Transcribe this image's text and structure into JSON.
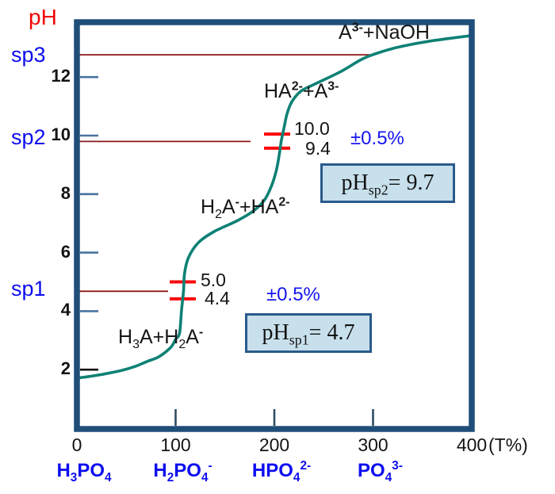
{
  "colors": {
    "frame": "#1f4e79",
    "curve": "#0e8175",
    "sp_line": "#8c1717",
    "tolerance_tick": "#fa0a0a",
    "y_tick": "#49739e",
    "y_tick_2": "#111111",
    "x_tick": "#2e4d63",
    "blue_text": "#0d0df0",
    "red_text": "#f20505",
    "box_fill": "#c8e0ec",
    "box_border": "#2a5a8c"
  },
  "y_axis": {
    "label": "pH",
    "tick_labels": [
      "2",
      "4",
      "6",
      "8",
      "10",
      "12"
    ],
    "sp_markers": [
      {
        "label": "sp1"
      },
      {
        "label": "sp2"
      },
      {
        "label": "sp3"
      }
    ]
  },
  "x_axis": {
    "tick_labels": [
      "0",
      "100",
      "200",
      "300",
      "400"
    ],
    "unit": "(T%)",
    "species_labels": [
      "H_{3}PO_{4}",
      "H_{2}PO_{4}^{-}",
      "HPO_{4}^{2-}",
      "PO_{4}^{3-}"
    ]
  },
  "annotations": {
    "regions": [
      {
        "label": "H_{3}A+H_{2}A^{-}"
      },
      {
        "label": "H_{2}A^{-}+HA^{2-}"
      },
      {
        "label": "HA^{2-}+A^{3-}"
      },
      {
        "label": "A^{3-}+NaOH"
      }
    ],
    "tolerance": [
      {
        "sp": "sp2",
        "upper": "10.0",
        "lower": "9.4",
        "pm": "±0.5%"
      },
      {
        "sp": "sp1",
        "upper": "5.0",
        "lower": "4.4",
        "pm": "±0.5%"
      }
    ]
  },
  "result_boxes": [
    {
      "text": "pH_{sp2}= 9.7"
    },
    {
      "text": "pH_{sp1}= 4.7"
    }
  ],
  "chart_data": {
    "type": "line",
    "title": "",
    "xlabel": "(T%)",
    "ylabel": "pH",
    "xlim": [
      0,
      400
    ],
    "ylim": [
      0,
      14
    ],
    "x_ticks": [
      0,
      100,
      200,
      300,
      400
    ],
    "y_ticks": [
      2,
      4,
      6,
      8,
      10,
      12
    ],
    "grid": false,
    "series": [
      {
        "name": "titration curve (pH vs T%)",
        "points": [
          [
            0,
            1.71
          ],
          [
            13,
            1.77
          ],
          [
            26,
            1.84
          ],
          [
            45,
            1.97
          ],
          [
            59,
            2.11
          ],
          [
            71,
            2.28
          ],
          [
            83,
            2.44
          ],
          [
            95,
            2.76
          ],
          [
            100,
            3.04
          ],
          [
            104,
            3.25
          ],
          [
            106,
            4.04
          ],
          [
            108,
            4.69
          ],
          [
            109,
            5.28
          ],
          [
            113,
            5.83
          ],
          [
            123,
            6.34
          ],
          [
            139,
            6.72
          ],
          [
            163,
            7.1
          ],
          [
            179,
            7.43
          ],
          [
            190,
            7.8
          ],
          [
            197,
            8.27
          ],
          [
            202,
            8.81
          ],
          [
            205,
            9.35
          ],
          [
            207,
            9.81
          ],
          [
            210,
            10.3
          ],
          [
            213,
            10.76
          ],
          [
            218,
            11.17
          ],
          [
            227,
            11.52
          ],
          [
            243,
            11.79
          ],
          [
            268,
            12.2
          ],
          [
            288,
            12.6
          ],
          [
            302,
            12.79
          ],
          [
            324,
            13.01
          ],
          [
            356,
            13.22
          ],
          [
            398,
            13.41
          ]
        ]
      }
    ],
    "sp_lines": [
      {
        "name": "sp1",
        "pH": 4.7,
        "tolerance_pH": [
          4.4,
          5.0
        ],
        "tolerance_text": "±0.5%"
      },
      {
        "name": "sp2",
        "pH": 9.7,
        "tolerance_pH": [
          9.4,
          10.0
        ],
        "tolerance_text": "±0.5%"
      },
      {
        "name": "sp3"
      }
    ],
    "region_labels": [
      "H3A+H2A-",
      "H2A-+HA2-",
      "HA2-+A3-",
      "A3-+NaOH"
    ],
    "species_labels": [
      "H3PO4",
      "H2PO4-",
      "HPO42-",
      "PO43-"
    ],
    "results": {
      "pH_sp1": "4.7",
      "pH_sp2": "9.7"
    }
  }
}
